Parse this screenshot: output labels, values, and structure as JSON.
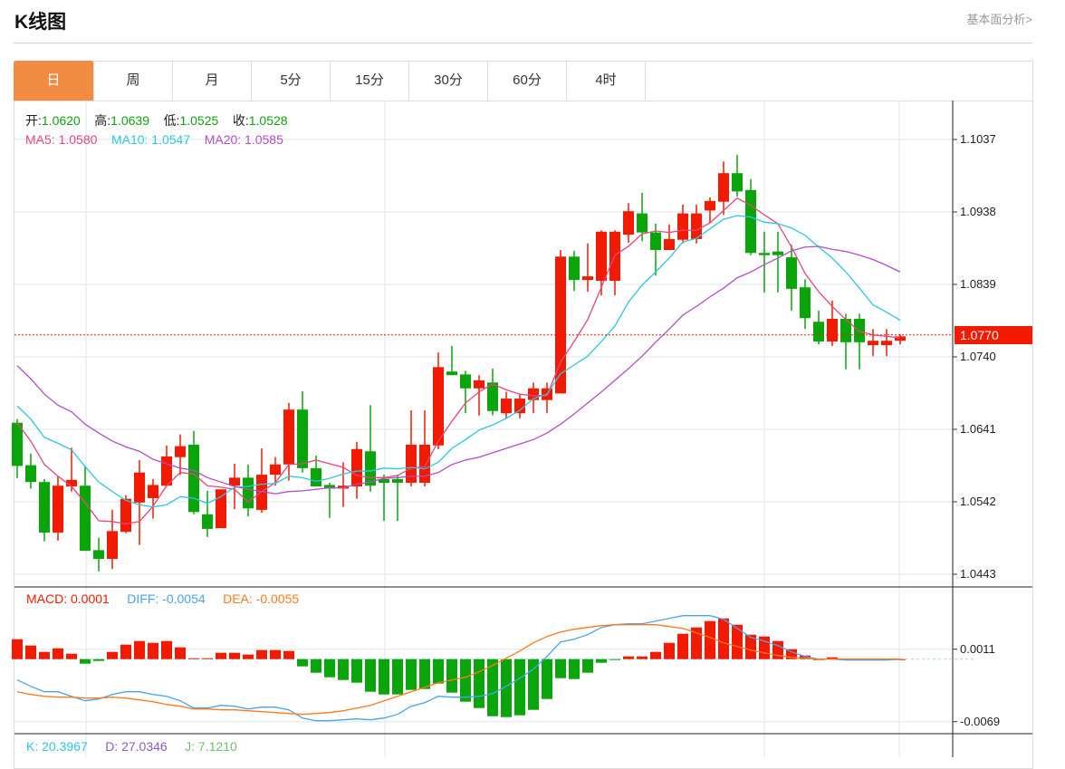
{
  "header": {
    "title": "K线图",
    "link": "基本面分析>"
  },
  "tabs": [
    {
      "label": "日",
      "active": true
    },
    {
      "label": "周"
    },
    {
      "label": "月"
    },
    {
      "label": "5分"
    },
    {
      "label": "15分"
    },
    {
      "label": "30分"
    },
    {
      "label": "60分"
    },
    {
      "label": "4时"
    }
  ],
  "ohlc_legend": {
    "open_label": "开:",
    "open": "1.0620",
    "high_label": "高:",
    "high": "1.0639",
    "low_label": "低:",
    "low": "1.0525",
    "close_label": "收:",
    "close": "1.0528"
  },
  "ma_legend": {
    "ma5": "MA5:  1.0580",
    "ma10": "MA10:  1.0547",
    "ma20": "MA20:  1.0585"
  },
  "macd_legend": {
    "macd": "MACD: 0.0001",
    "diff": "DIFF: -0.0054",
    "dea": "DEA: -0.0055"
  },
  "kdj_legend": {
    "k": "K: 20.3967",
    "d": "D: 27.0346",
    "j": "J: 7.1210"
  },
  "current_price": "1.0770",
  "colors": {
    "up": "#f21a00",
    "down": "#0aa50a",
    "ma5": "#e8457a",
    "ma10": "#2ec6dc",
    "ma20": "#b04fc4",
    "diff": "#4aa3f0",
    "dea": "#ff7a1a",
    "accent": "#f28c42"
  },
  "chart_data": [
    {
      "type": "candlestick",
      "title": "K线图",
      "y_ticks": [
        "1.1037",
        "1.0938",
        "1.0839",
        "1.0740",
        "1.0641",
        "1.0542",
        "1.0443"
      ],
      "ylim": [
        1.0443,
        1.1037
      ],
      "candles_ochl_note": "each candle is [open, close, high, low]",
      "candles": [
        [
          1.065,
          1.0591,
          1.0655,
          1.0574
        ],
        [
          1.0592,
          1.0569,
          1.0608,
          1.056
        ],
        [
          1.0569,
          1.05,
          1.0573,
          1.0488
        ],
        [
          1.05,
          1.0564,
          1.0577,
          1.0489
        ],
        [
          1.0563,
          1.0572,
          1.0616,
          1.0556
        ],
        [
          1.0564,
          1.0475,
          1.0591,
          1.0475
        ],
        [
          1.0476,
          1.0464,
          1.0493,
          1.0447
        ],
        [
          1.0464,
          1.0502,
          1.0531,
          1.045
        ],
        [
          1.0501,
          1.0546,
          1.0551,
          1.0499
        ],
        [
          1.0541,
          1.0582,
          1.0599,
          1.0483
        ],
        [
          1.0547,
          1.0565,
          1.0573,
          1.0519
        ],
        [
          1.0564,
          1.0604,
          1.0619,
          1.0564
        ],
        [
          1.0603,
          1.0618,
          1.0634,
          1.0579
        ],
        [
          1.062,
          1.0528,
          1.0639,
          1.0525
        ],
        [
          1.0525,
          1.0505,
          1.0557,
          1.0494
        ],
        [
          1.0506,
          1.0559,
          1.0559,
          1.0506
        ],
        [
          1.0564,
          1.0575,
          1.0594,
          1.0532
        ],
        [
          1.0575,
          1.0533,
          1.0593,
          1.0522
        ],
        [
          1.0531,
          1.0579,
          1.0615,
          1.0527
        ],
        [
          1.0579,
          1.0593,
          1.0603,
          1.0564
        ],
        [
          1.0593,
          1.0668,
          1.0677,
          1.0571
        ],
        [
          1.0668,
          1.0588,
          1.0693,
          1.0582
        ],
        [
          1.0588,
          1.0563,
          1.0605,
          1.0563
        ],
        [
          1.0565,
          1.056,
          1.0568,
          1.052
        ],
        [
          1.056,
          1.0564,
          1.0596,
          1.0535
        ],
        [
          1.0563,
          1.0614,
          1.0624,
          1.0546
        ],
        [
          1.0611,
          1.0564,
          1.0674,
          1.0556
        ],
        [
          1.0573,
          1.0568,
          1.0579,
          1.0516
        ],
        [
          1.0573,
          1.0568,
          1.0579,
          1.0516
        ],
        [
          1.0568,
          1.062,
          1.0667,
          1.0563
        ],
        [
          1.0568,
          1.062,
          1.0667,
          1.0563
        ],
        [
          1.0619,
          1.0726,
          1.0746,
          1.0614
        ],
        [
          1.072,
          1.0715,
          1.0755,
          1.0715
        ],
        [
          1.0716,
          1.0697,
          1.0721,
          1.0663
        ],
        [
          1.0697,
          1.0708,
          1.0715,
          1.066
        ],
        [
          1.0705,
          1.0666,
          1.0724,
          1.066
        ],
        [
          1.0663,
          1.0683,
          1.0692,
          1.0656
        ],
        [
          1.0663,
          1.0683,
          1.069,
          1.0656
        ],
        [
          1.0681,
          1.0697,
          1.0705,
          1.0663
        ],
        [
          1.0681,
          1.0697,
          1.0705,
          1.0663
        ],
        [
          1.069,
          1.0877,
          1.0886,
          1.069
        ],
        [
          1.0877,
          1.0845,
          1.0885,
          1.083
        ],
        [
          1.0845,
          1.085,
          1.0895,
          1.0829
        ],
        [
          1.0844,
          1.0911,
          1.0913,
          1.0824
        ],
        [
          1.0844,
          1.0911,
          1.0913,
          1.0824
        ],
        [
          1.0907,
          1.0939,
          1.095,
          1.0896
        ],
        [
          1.0936,
          1.091,
          1.0964,
          1.0898
        ],
        [
          1.091,
          1.0886,
          1.0922,
          1.0851
        ],
        [
          1.0886,
          1.0901,
          1.0921,
          1.0886
        ],
        [
          1.09,
          1.0936,
          1.0948,
          1.0895
        ],
        [
          1.0901,
          1.0936,
          1.0948,
          1.0895
        ],
        [
          1.094,
          1.0953,
          1.0958,
          1.0923
        ],
        [
          1.0952,
          1.0991,
          1.1007,
          1.0934
        ],
        [
          1.0991,
          1.0966,
          1.1016,
          1.0959
        ],
        [
          1.0968,
          1.0882,
          1.0983,
          1.0879
        ],
        [
          1.0882,
          1.0879,
          1.0911,
          1.0828
        ],
        [
          1.0884,
          1.0879,
          1.0911,
          1.0828
        ],
        [
          1.0876,
          1.0833,
          1.0893,
          1.0803
        ],
        [
          1.0835,
          1.0793,
          1.0846,
          1.0778
        ],
        [
          1.0788,
          1.0761,
          1.0803,
          1.0757
        ],
        [
          1.0761,
          1.0792,
          1.0817,
          1.0755
        ],
        [
          1.0792,
          1.076,
          1.0799,
          1.0723
        ],
        [
          1.0792,
          1.076,
          1.0799,
          1.0723
        ],
        [
          1.0756,
          1.0762,
          1.0778,
          1.0741
        ],
        [
          1.0756,
          1.0762,
          1.0778,
          1.0741
        ],
        [
          1.0762,
          1.0768,
          1.0771,
          1.0757
        ]
      ],
      "series": [
        {
          "name": "MA5",
          "values": [
            1.065,
            1.0625,
            1.0593,
            1.0577,
            1.0563,
            1.0541,
            1.0516,
            1.0515,
            1.0512,
            1.0515,
            1.0536,
            1.0564,
            1.0582,
            1.058,
            1.0564,
            1.0562,
            1.0559,
            1.0542,
            1.0556,
            1.0568,
            1.0593,
            1.0594,
            1.0599,
            1.0594,
            1.0589,
            1.0578,
            1.0575,
            1.0575,
            1.0578,
            1.0588,
            1.059,
            1.0625,
            1.0652,
            1.0677,
            1.0692,
            1.0703,
            1.0695,
            1.0689,
            1.0687,
            1.0687,
            1.0733,
            1.0761,
            1.0791,
            1.0835,
            1.0879,
            1.0891,
            1.0908,
            1.0912,
            1.091,
            1.0913,
            1.0913,
            1.0923,
            1.094,
            1.0957,
            1.0947,
            1.0934,
            1.0922,
            1.089,
            1.0854,
            1.0829,
            1.0809,
            1.0791,
            1.0775,
            1.077,
            1.0768,
            1.0766
          ]
        },
        {
          "name": "MA10",
          "values": [
            1.0673,
            1.0655,
            1.063,
            1.0622,
            1.0613,
            1.059,
            1.0569,
            1.0556,
            1.0544,
            1.0538,
            1.0535,
            1.0538,
            1.0549,
            1.0547,
            1.054,
            1.0549,
            1.0562,
            1.0563,
            1.0566,
            1.0567,
            1.0577,
            1.0575,
            1.057,
            1.0574,
            1.058,
            1.0584,
            1.0584,
            1.0588,
            1.0587,
            1.0589,
            1.0587,
            1.0596,
            1.0615,
            1.0627,
            1.064,
            1.0647,
            1.0656,
            1.0667,
            1.0683,
            1.0689,
            1.0717,
            1.0729,
            1.0741,
            1.0761,
            1.0782,
            1.0815,
            1.0838,
            1.0856,
            1.0875,
            1.0897,
            1.0902,
            1.0915,
            1.0928,
            1.0933,
            1.0931,
            1.0924,
            1.0922,
            1.0916,
            1.0906,
            1.089,
            1.0875,
            1.0856,
            1.0834,
            1.0811,
            1.0801,
            1.079
          ]
        },
        {
          "name": "MA20",
          "values": [
            1.0728,
            1.071,
            1.0689,
            1.0674,
            1.0665,
            1.0648,
            1.0636,
            1.0625,
            1.0617,
            1.0611,
            1.06,
            1.0594,
            1.0588,
            1.0585,
            1.0575,
            1.0569,
            1.0563,
            1.0559,
            1.0556,
            1.0553,
            1.0556,
            1.0557,
            1.0559,
            1.0561,
            1.0561,
            1.0566,
            1.0569,
            1.0574,
            1.0575,
            1.0577,
            1.0577,
            1.0582,
            1.0593,
            1.0599,
            1.0603,
            1.0609,
            1.0615,
            1.0621,
            1.0627,
            1.0636,
            1.0648,
            1.0662,
            1.0677,
            1.0692,
            1.0708,
            1.0724,
            1.0741,
            1.076,
            1.0778,
            1.0797,
            1.0809,
            1.0822,
            1.0834,
            1.0848,
            1.0856,
            1.0866,
            1.0875,
            1.0885,
            1.089,
            1.0891,
            1.0887,
            1.0884,
            1.0879,
            1.0873,
            1.0865,
            1.0856
          ]
        }
      ]
    },
    {
      "type": "bar+line",
      "title": "MACD",
      "y_ticks": [
        "0.0011",
        "-0.0069"
      ],
      "macd": [
        0.0022,
        0.0015,
        0.0008,
        0.0012,
        0.0006,
        -0.0005,
        -0.0002,
        0.0008,
        0.0016,
        0.002,
        0.0018,
        0.002,
        0.0013,
        0.0001,
        0.0001,
        0.0007,
        0.0007,
        0.0005,
        0.001,
        0.001,
        0.0009,
        -0.0008,
        -0.0015,
        -0.002,
        -0.0023,
        -0.0026,
        -0.0036,
        -0.0039,
        -0.0039,
        -0.0034,
        -0.0033,
        -0.0027,
        -0.0037,
        -0.0047,
        -0.0054,
        -0.0063,
        -0.0064,
        -0.0062,
        -0.0056,
        -0.0044,
        -0.0021,
        -0.0022,
        -0.0015,
        -0.0004,
        -0.0001,
        0.0003,
        0.0003,
        0.0008,
        0.0018,
        0.0028,
        0.0035,
        0.0042,
        0.0045,
        0.0038,
        0.0027,
        0.0025,
        0.002,
        0.0011,
        0.0004,
        0.0,
        0.0002,
        0.0,
        0.0,
        0.0,
        0.0,
        0.0
      ],
      "series": [
        {
          "name": "DIFF",
          "values": [
            -0.0023,
            -0.003,
            -0.0036,
            -0.0036,
            -0.0041,
            -0.0046,
            -0.0044,
            -0.0039,
            -0.0036,
            -0.0036,
            -0.0039,
            -0.0041,
            -0.0046,
            -0.0054,
            -0.0054,
            -0.0051,
            -0.0052,
            -0.0055,
            -0.0053,
            -0.0053,
            -0.0056,
            -0.0065,
            -0.0068,
            -0.0068,
            -0.0067,
            -0.0066,
            -0.0067,
            -0.0065,
            -0.0061,
            -0.0052,
            -0.0048,
            -0.0041,
            -0.0042,
            -0.0042,
            -0.0041,
            -0.0038,
            -0.003,
            -0.0021,
            -0.0011,
            0.0003,
            0.0019,
            0.0022,
            0.0027,
            0.0035,
            0.0038,
            0.0039,
            0.0039,
            0.0042,
            0.0045,
            0.0048,
            0.0048,
            0.0048,
            0.0044,
            0.0034,
            0.0024,
            0.002,
            0.0015,
            0.0008,
            0.0003,
            0.0,
            0.0,
            -0.0001,
            -0.0001,
            -0.0001,
            -0.0001,
            0.0
          ]
        },
        {
          "name": "DEA",
          "values": [
            -0.0036,
            -0.0039,
            -0.0041,
            -0.0042,
            -0.0042,
            -0.0043,
            -0.0043,
            -0.0042,
            -0.0043,
            -0.0045,
            -0.0047,
            -0.005,
            -0.0052,
            -0.0055,
            -0.0055,
            -0.0056,
            -0.0056,
            -0.0057,
            -0.0058,
            -0.0059,
            -0.006,
            -0.0061,
            -0.006,
            -0.0059,
            -0.0057,
            -0.0054,
            -0.0051,
            -0.0046,
            -0.0041,
            -0.0036,
            -0.0031,
            -0.0026,
            -0.0023,
            -0.002,
            -0.0014,
            -0.0007,
            0.0001,
            0.0009,
            0.0018,
            0.0025,
            0.003,
            0.0033,
            0.0035,
            0.0037,
            0.0038,
            0.0038,
            0.0038,
            0.0038,
            0.0036,
            0.0034,
            0.0029,
            0.0024,
            0.0018,
            0.0014,
            0.001,
            0.0007,
            0.0004,
            0.0002,
            0.0001,
            0.0,
            0.0,
            0.0,
            0.0,
            0.0,
            0.0,
            0.0
          ]
        }
      ]
    }
  ]
}
